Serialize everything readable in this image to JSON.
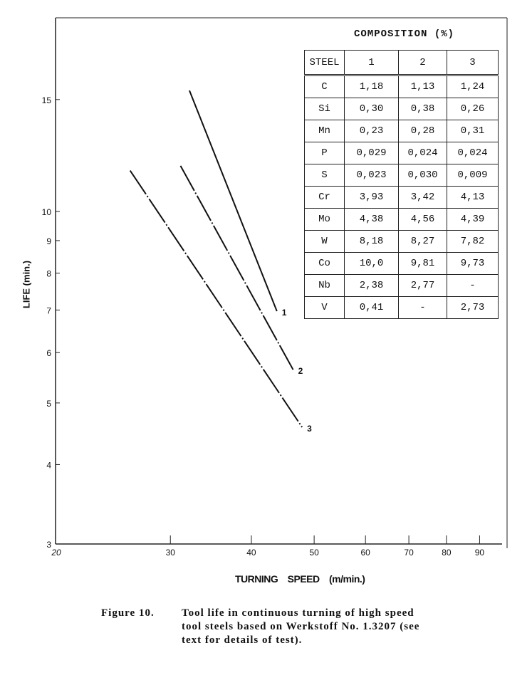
{
  "chart_data": {
    "type": "line",
    "title": "",
    "xlabel": "TURNING   SPEED (m/min.)",
    "ylabel": "LIFE (min.)",
    "x_scale": "log",
    "y_scale": "log",
    "xlim": [
      20,
      95
    ],
    "ylim": [
      3,
      18
    ],
    "x_ticks": [
      20,
      30,
      40,
      50,
      60,
      70,
      80,
      90
    ],
    "x_tick_labels": [
      "20",
      "30",
      "40",
      "50",
      "60",
      "70",
      "80",
      "90"
    ],
    "y_ticks": [
      3,
      4,
      5,
      6,
      7,
      8,
      9,
      10,
      15
    ],
    "y_tick_labels": [
      "3",
      "4",
      "5",
      "6",
      "7",
      "8",
      "9",
      "10",
      "15"
    ],
    "grid": false,
    "series": [
      {
        "name": "1",
        "x": [
          32.1,
          43.8
        ],
        "y": [
          15.5,
          6.97
        ],
        "style": "solid"
      },
      {
        "name": "2",
        "x": [
          31.1,
          46.4
        ],
        "y": [
          11.8,
          5.64
        ],
        "style": "dash-dot"
      },
      {
        "name": "3",
        "x": [
          26.0,
          47.9
        ],
        "y": [
          11.6,
          4.58
        ],
        "style": "dash-dot"
      }
    ]
  },
  "composition": {
    "title": "COMPOSITION (%)",
    "header": [
      "STEEL",
      "1",
      "2",
      "3"
    ],
    "rows": [
      [
        "C",
        "1,18",
        "1,13",
        "1,24"
      ],
      [
        "Si",
        "0,30",
        "0,38",
        "0,26"
      ],
      [
        "Mn",
        "0,23",
        "0,28",
        "0,31"
      ],
      [
        "P",
        "0,029",
        "0,024",
        "0,024"
      ],
      [
        "S",
        "0,023",
        "0,030",
        "0,009"
      ],
      [
        "Cr",
        "3,93",
        "3,42",
        "4,13"
      ],
      [
        "Mo",
        "4,38",
        "4,56",
        "4,39"
      ],
      [
        "W",
        "8,18",
        "8,27",
        "7,82"
      ],
      [
        "Co",
        "10,0",
        "9,81",
        "9,73"
      ],
      [
        "Nb",
        "2,38",
        "2,77",
        "-"
      ],
      [
        "V",
        "0,41",
        "-",
        "2,73"
      ]
    ]
  },
  "caption": {
    "label": "Figure  10.",
    "text": "Tool life in continuous turning of high speed tool steels based on Werkstoff No. 1.3207 (see text for details of test)."
  }
}
